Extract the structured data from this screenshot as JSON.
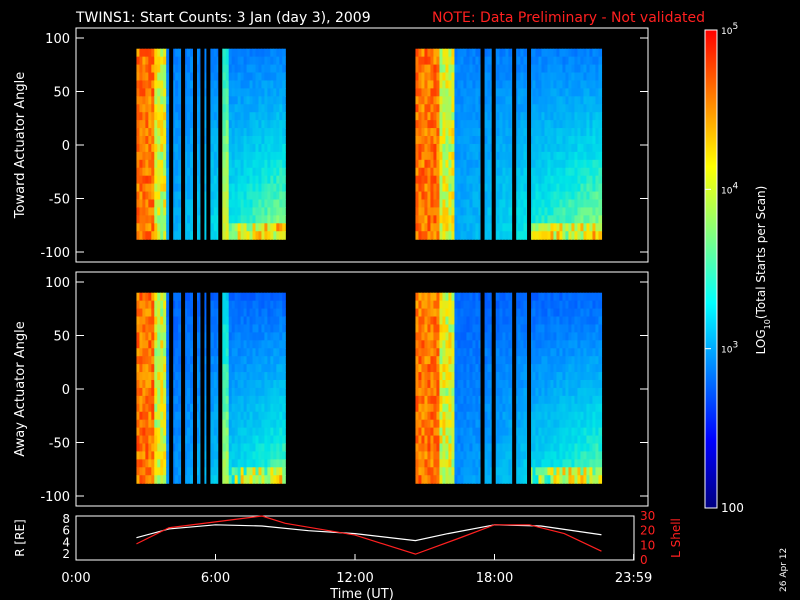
{
  "header": {
    "title": "TWINS1: Start Counts:  3 Jan (day   3), 2009",
    "note": "NOTE: Data Preliminary - Not validated"
  },
  "panels": [
    {
      "ylabel": "Toward Actuator Angle",
      "yticks": [
        "100",
        "50",
        "0",
        "-50",
        "-100"
      ]
    },
    {
      "ylabel": "Away Actuator Angle",
      "yticks": [
        "100",
        "50",
        "0",
        "-50",
        "-100"
      ]
    }
  ],
  "colorbar": {
    "title": "LOG10(Total Starts per Scan)",
    "title_main": "LOG",
    "title_sub": "10",
    "title_rest": "(Total Starts per Scan)",
    "ticks": [
      {
        "label": "10",
        "sup": "5",
        "value": 100000
      },
      {
        "label": "10",
        "sup": "4",
        "value": 10000
      },
      {
        "label": "10",
        "sup": "3",
        "value": 1000
      },
      {
        "label": "100",
        "sup": "",
        "value": 100
      }
    ],
    "colors": [
      "#000080",
      "#0000ff",
      "#0080ff",
      "#00ffff",
      "#80ff80",
      "#ffff00",
      "#ff8000",
      "#ff0000"
    ]
  },
  "orbit": {
    "left_label": "R [RE]",
    "right_label": "L Shell",
    "left_ticks": [
      "8",
      "6",
      "4",
      "2"
    ],
    "right_ticks": [
      "30",
      "20",
      "10",
      "0"
    ]
  },
  "xaxis": {
    "label": "Time (UT)",
    "ticks": [
      "0:00",
      "6:00",
      "12:00",
      "18:00",
      "23:59"
    ]
  },
  "date_stamp": "26 Apr 12",
  "chart_data": {
    "type": "heatmap",
    "title": "TWINS1: Start Counts:  3 Jan (day   3), 2009",
    "xlabel": "Time (UT)",
    "xlim": [
      "0:00",
      "23:59"
    ],
    "ylim": [
      -100,
      100
    ],
    "zscale": "log",
    "zlim": [
      100,
      100000
    ],
    "observation_windows_hours": [
      [
        2.6,
        9.0
      ],
      [
        14.6,
        22.6
      ]
    ],
    "panels": [
      {
        "name": "Toward Actuator Angle",
        "yrange_data": [
          -88,
          90
        ]
      },
      {
        "name": "Away Actuator Angle",
        "yrange_data": [
          -88,
          90
        ]
      }
    ],
    "orbit_series": [
      {
        "name": "R [RE]",
        "hours": [
          2.6,
          4.0,
          6.0,
          8.0,
          10.0,
          12.0,
          14.6,
          16.0,
          18.0,
          20.0,
          22.6
        ],
        "values": [
          4.8,
          6.3,
          7.0,
          6.8,
          6.0,
          5.5,
          4.3,
          5.5,
          7.0,
          6.8,
          5.3
        ]
      },
      {
        "name": "L Shell",
        "hours": [
          2.6,
          4.0,
          8.0,
          9.0,
          12.0,
          14.6,
          16.5,
          18.0,
          19.5,
          21.0,
          22.6
        ],
        "values": [
          11,
          22,
          30,
          25,
          17,
          4,
          15,
          24,
          24,
          18,
          6
        ]
      }
    ]
  }
}
